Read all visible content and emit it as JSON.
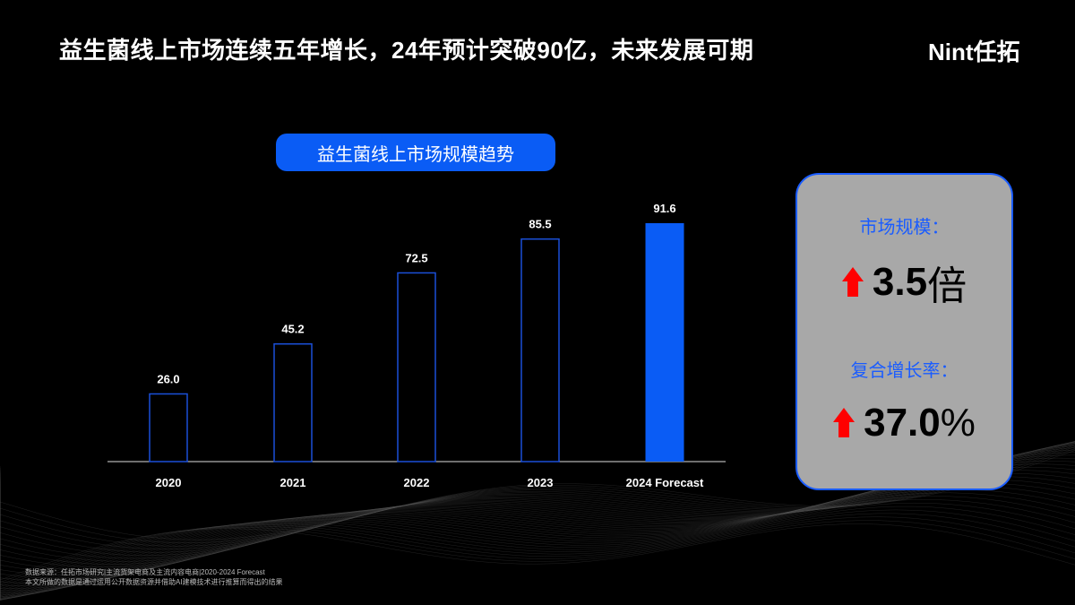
{
  "header": {
    "title": "益生菌线上市场连续五年增长，24年预计突破90亿，未来发展可期",
    "logo": "Nint任拓"
  },
  "chart_data": {
    "type": "bar",
    "title": "益生菌线上市场规模趋势",
    "categories": [
      "2020",
      "2021",
      "2022",
      "2023",
      "2024 Forecast"
    ],
    "values": [
      26.0,
      45.2,
      72.5,
      85.5,
      91.6
    ],
    "labels": [
      "26.0",
      "45.2",
      "72.5",
      "85.5",
      "91.6"
    ],
    "highlight": [
      false,
      false,
      false,
      false,
      true
    ],
    "ylim": [
      0,
      100
    ],
    "colors": {
      "bar": "#0a5cf5",
      "outline": "#1a4fd8"
    }
  },
  "card": {
    "market_label": "市场规模：",
    "market_value": "3.5",
    "market_unit": "倍",
    "cagr_label": "复合增长率：",
    "cagr_value": "37.0",
    "cagr_unit": "%",
    "arrow_icon": "up-arrow-icon"
  },
  "footer": {
    "source": "数据来源：任拓市场研究|主流货架电商及主流内容电商|2020-2024 Forecast",
    "note": "本文所做的数据是通过运用公开数据资源并借助AI建模技术进行推算而得出的结果"
  }
}
